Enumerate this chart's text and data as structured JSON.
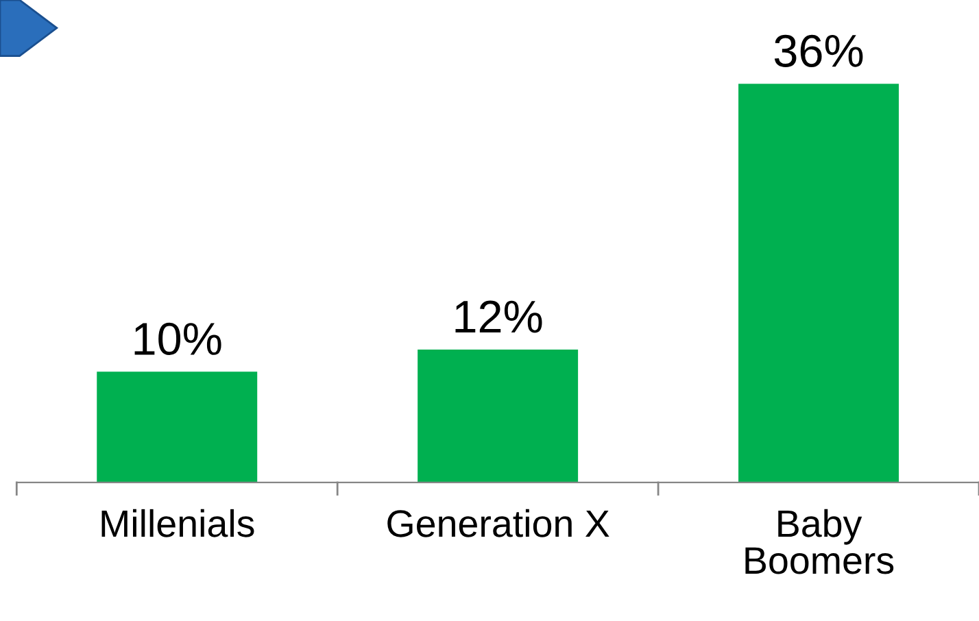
{
  "chart_data": {
    "type": "bar",
    "categories": [
      "Millenials",
      "Generation X",
      "Baby\nBoomers"
    ],
    "values": [
      10,
      12,
      36
    ],
    "value_labels": [
      "10%",
      "12%",
      "36%"
    ],
    "color": "#00b050",
    "grid": false,
    "legend": false
  }
}
